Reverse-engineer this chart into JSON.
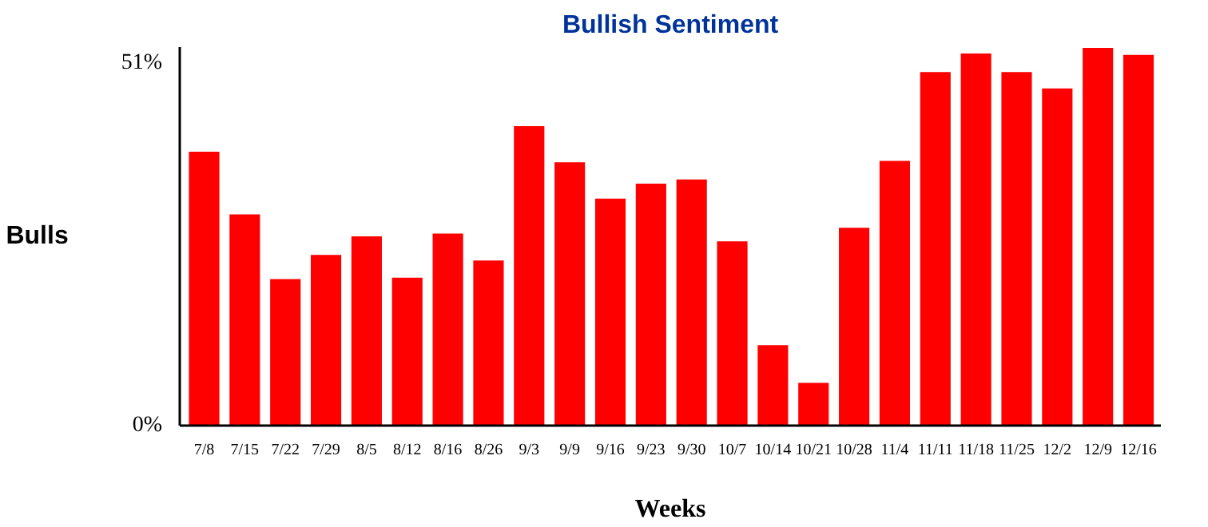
{
  "chart_data": {
    "type": "bar",
    "title": "Bullish Sentiment",
    "xlabel": "Weeks",
    "ylabel": "Bulls",
    "categories": [
      "7/8",
      "7/15",
      "7/22",
      "7/29",
      "8/5",
      "8/12",
      "8/16",
      "8/26",
      "9/3",
      "9/9",
      "9/16",
      "9/23",
      "9/30",
      "10/7",
      "10/14",
      "10/21",
      "10/28",
      "11/4",
      "11/11",
      "11/18",
      "11/25",
      "12/2",
      "12/9",
      "12/16"
    ],
    "values": [
      38.5,
      29.7,
      20.6,
      24.0,
      26.6,
      20.8,
      27.0,
      23.2,
      42.1,
      37.0,
      31.9,
      34.0,
      34.6,
      25.9,
      11.3,
      6.0,
      27.8,
      37.2,
      49.7,
      52.3,
      49.7,
      47.4,
      53.1,
      52.1
    ],
    "color": "#ff0000",
    "ylim": [
      0,
      53.2
    ],
    "yticks": [
      {
        "value": 0,
        "label": "0%"
      },
      {
        "value": 51,
        "label": "51%"
      }
    ],
    "grid": false
  }
}
